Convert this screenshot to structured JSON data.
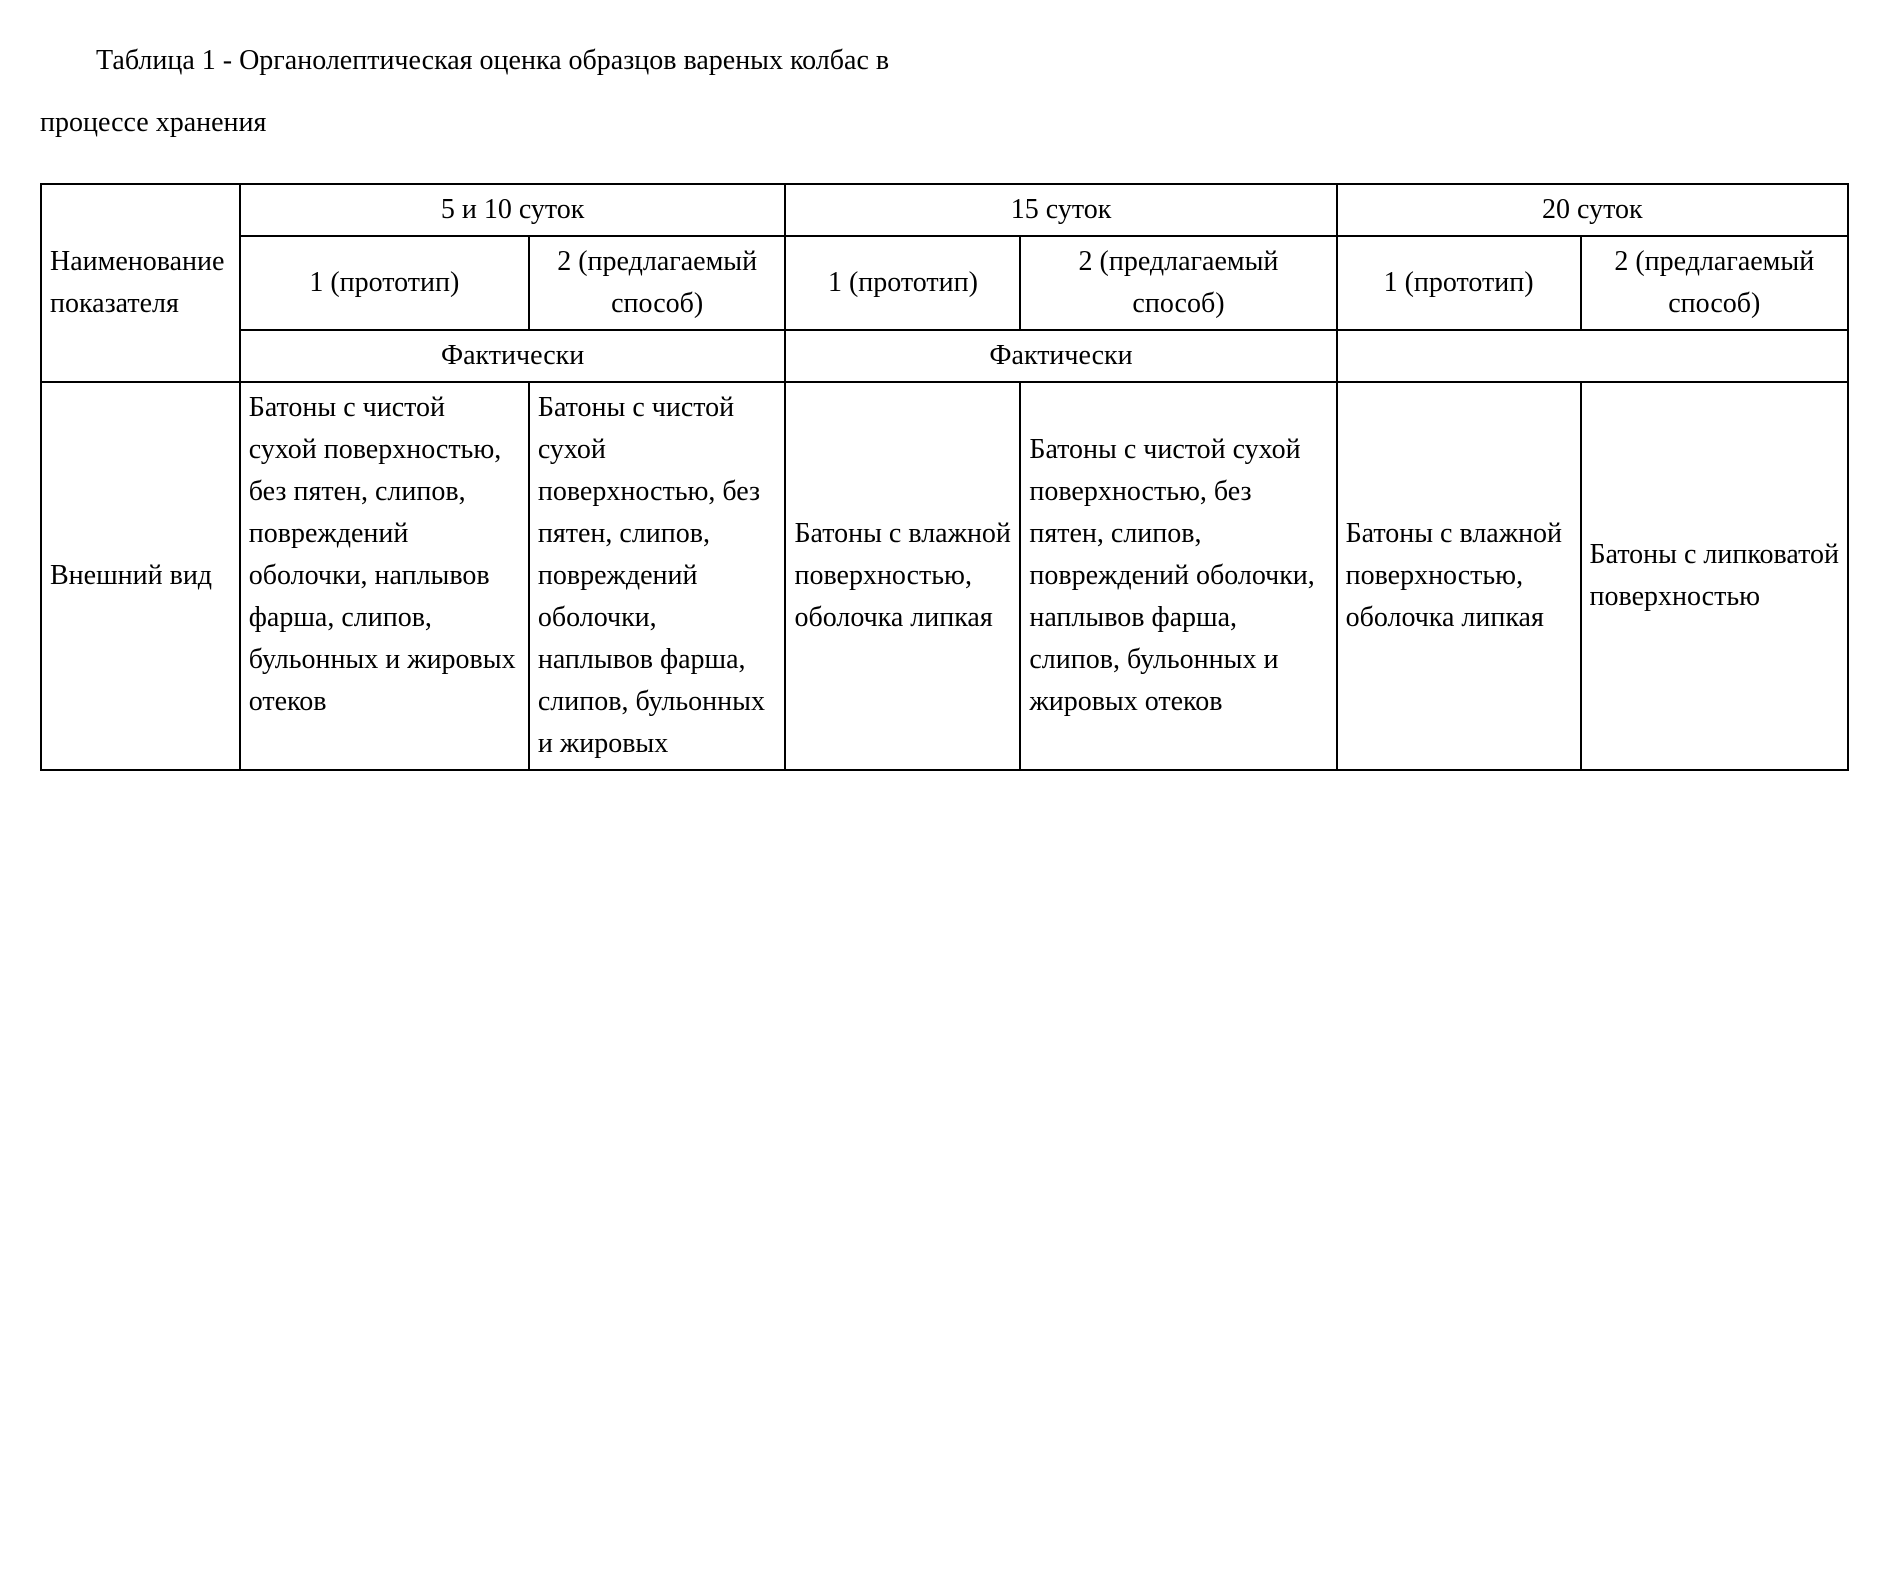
{
  "caption": {
    "line1": "Таблица 1 - Органолептическая оценка образцов вареных колбас в",
    "line2": "процессе хранения"
  },
  "table": {
    "border_color": "#000000",
    "background_color": "#ffffff",
    "font_family": "Times New Roman",
    "header": {
      "rowLabel": "Наименование показателя",
      "groups": [
        {
          "title": "5 и 10 суток",
          "sub1": "1 (прототип)",
          "sub2": "2 (предлагаемый способ)",
          "factual": "Фактически"
        },
        {
          "title": "15 суток",
          "sub1": "1 (прототип)",
          "sub2": "2 (предлагаемый способ)",
          "factual": "Фактически"
        },
        {
          "title": "20 суток",
          "sub1": "1 (прототип)",
          "sub2": "2 (предлагаемый способ)",
          "factual": ""
        }
      ]
    },
    "rows": [
      {
        "label": "Внешний вид",
        "cells": [
          "Батоны с чистой сухой поверхностью, без пятен, слипов, повреждений оболочки, наплывов фарша, слипов, бульонных и жировых отеков",
          "Батоны с чистой сухой поверхностью, без пятен, слипов, повреждений оболочки, наплывов фарша, слипов, бульонных и жировых",
          "Батоны с влажной поверхностью, оболочка липкая",
          "Батоны с чистой сухой поверхностью, без пятен, слипов, повреждений оболочки, наплывов фарша, слипов, бульонных и жировых отеков",
          "Батоны с влажной поверхностью, оболочка липкая",
          "Батоны с липковатой поверхностью"
        ]
      }
    ]
  }
}
